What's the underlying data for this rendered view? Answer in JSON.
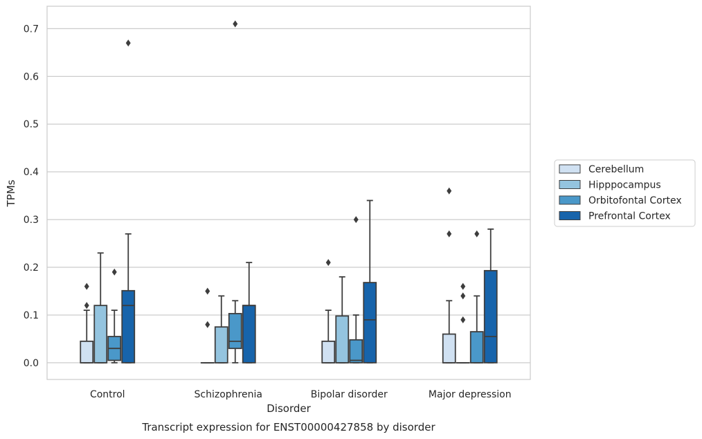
{
  "chart_data": {
    "type": "boxplot",
    "title": "",
    "caption": "Transcript expression for ENST00000427858 by disorder",
    "xlabel": "Disorder",
    "ylabel": "TPMs",
    "ylim": [
      -0.035,
      0.747
    ],
    "yticks": [
      0.0,
      0.1,
      0.2,
      0.3,
      0.4,
      0.5,
      0.6,
      0.7
    ],
    "ytick_labels": [
      "0.0",
      "0.1",
      "0.2",
      "0.3",
      "0.4",
      "0.5",
      "0.6",
      "0.7"
    ],
    "grid": "horizontal",
    "legend_position": "right",
    "categories": [
      "Control",
      "Schizophrenia",
      "Bipolar disorder",
      "Major depression"
    ],
    "series": [
      {
        "name": "Cerebellum",
        "color": "#d0e1f2",
        "boxes": [
          {
            "q1": 0.0,
            "median": 0.0,
            "q3": 0.045,
            "whisker_low": 0.0,
            "whisker_high": 0.11,
            "outliers": [
              0.12,
              0.16
            ]
          },
          {
            "q1": 0.0,
            "median": 0.0,
            "q3": 0.0,
            "whisker_low": 0.0,
            "whisker_high": 0.0,
            "outliers": [
              0.08,
              0.15
            ]
          },
          {
            "q1": 0.0,
            "median": 0.0,
            "q3": 0.045,
            "whisker_low": 0.0,
            "whisker_high": 0.11,
            "outliers": [
              0.21
            ]
          },
          {
            "q1": 0.0,
            "median": 0.0,
            "q3": 0.06,
            "whisker_low": 0.0,
            "whisker_high": 0.13,
            "outliers": [
              0.27,
              0.36
            ]
          }
        ]
      },
      {
        "name": "Hipppocampus",
        "color": "#94c4df",
        "boxes": [
          {
            "q1": 0.0,
            "median": 0.0,
            "q3": 0.12,
            "whisker_low": 0.0,
            "whisker_high": 0.23,
            "outliers": []
          },
          {
            "q1": 0.0,
            "median": 0.0,
            "q3": 0.075,
            "whisker_low": 0.0,
            "whisker_high": 0.14,
            "outliers": []
          },
          {
            "q1": 0.0,
            "median": 0.0,
            "q3": 0.098,
            "whisker_low": 0.0,
            "whisker_high": 0.18,
            "outliers": []
          },
          {
            "q1": 0.0,
            "median": 0.0,
            "q3": 0.0,
            "whisker_low": 0.0,
            "whisker_high": 0.0,
            "outliers": [
              0.09,
              0.14,
              0.16
            ]
          }
        ]
      },
      {
        "name": "Orbitofontal Cortex",
        "color": "#4a98c9",
        "boxes": [
          {
            "q1": 0.005,
            "median": 0.03,
            "q3": 0.055,
            "whisker_low": 0.0,
            "whisker_high": 0.11,
            "outliers": [
              0.19
            ]
          },
          {
            "q1": 0.03,
            "median": 0.045,
            "q3": 0.103,
            "whisker_low": 0.0,
            "whisker_high": 0.13,
            "outliers": [
              0.71
            ]
          },
          {
            "q1": 0.0,
            "median": 0.005,
            "q3": 0.048,
            "whisker_low": 0.0,
            "whisker_high": 0.1,
            "outliers": [
              0.3
            ]
          },
          {
            "q1": 0.0,
            "median": 0.0,
            "q3": 0.065,
            "whisker_low": 0.0,
            "whisker_high": 0.14,
            "outliers": [
              0.27
            ]
          }
        ]
      },
      {
        "name": "Prefrontal Cortex",
        "color": "#1764ab",
        "boxes": [
          {
            "q1": 0.0,
            "median": 0.12,
            "q3": 0.151,
            "whisker_low": 0.0,
            "whisker_high": 0.27,
            "outliers": [
              0.67
            ]
          },
          {
            "q1": 0.0,
            "median": 0.12,
            "q3": 0.12,
            "whisker_low": 0.0,
            "whisker_high": 0.21,
            "outliers": []
          },
          {
            "q1": 0.0,
            "median": 0.09,
            "q3": 0.168,
            "whisker_low": 0.0,
            "whisker_high": 0.34,
            "outliers": []
          },
          {
            "q1": 0.0,
            "median": 0.055,
            "q3": 0.193,
            "whisker_low": 0.0,
            "whisker_high": 0.28,
            "outliers": []
          }
        ]
      }
    ]
  }
}
